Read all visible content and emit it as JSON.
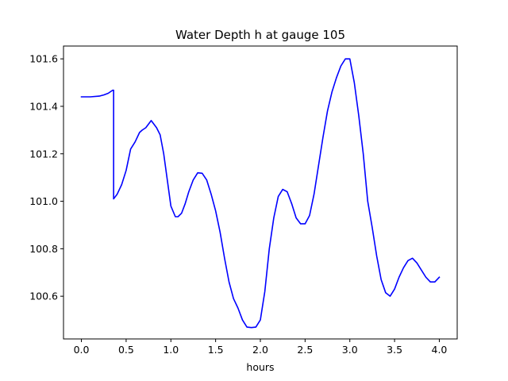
{
  "chart_data": {
    "type": "line",
    "title": "Water Depth h at gauge 105",
    "xlabel": "hours",
    "ylabel": "",
    "xlim": [
      -0.2,
      4.2
    ],
    "ylim": [
      100.42,
      101.654
    ],
    "xticks": [
      0.0,
      0.5,
      1.0,
      1.5,
      2.0,
      2.5,
      3.0,
      3.5,
      4.0
    ],
    "xtick_labels": [
      "0.0",
      "0.5",
      "1.0",
      "1.5",
      "2.0",
      "2.5",
      "3.0",
      "3.5",
      "4.0"
    ],
    "yticks": [
      100.6,
      100.8,
      101.0,
      101.2,
      101.4,
      101.6
    ],
    "ytick_labels": [
      "100.6",
      "100.8",
      "101.0",
      "101.2",
      "101.4",
      "101.6"
    ],
    "grid": false,
    "legend": "none",
    "series": [
      {
        "color": "#0000ff",
        "x": [
          0.0,
          0.1,
          0.2,
          0.25,
          0.3,
          0.35,
          0.36,
          0.36,
          0.4,
          0.45,
          0.5,
          0.55,
          0.6,
          0.65,
          0.68,
          0.72,
          0.76,
          0.78,
          0.8,
          0.84,
          0.88,
          0.92,
          0.96,
          1.0,
          1.05,
          1.08,
          1.12,
          1.16,
          1.2,
          1.25,
          1.3,
          1.35,
          1.4,
          1.45,
          1.5,
          1.55,
          1.6,
          1.65,
          1.7,
          1.75,
          1.8,
          1.85,
          1.9,
          1.95,
          2.0,
          2.05,
          2.1,
          2.15,
          2.2,
          2.25,
          2.3,
          2.35,
          2.4,
          2.45,
          2.5,
          2.55,
          2.6,
          2.65,
          2.7,
          2.75,
          2.8,
          2.85,
          2.9,
          2.95,
          3.0,
          3.05,
          3.1,
          3.15,
          3.2,
          3.25,
          3.3,
          3.35,
          3.4,
          3.45,
          3.5,
          3.55,
          3.6,
          3.65,
          3.7,
          3.75,
          3.8,
          3.85,
          3.9,
          3.95,
          4.0
        ],
        "y": [
          101.44,
          101.44,
          101.443,
          101.448,
          101.455,
          101.468,
          101.468,
          101.01,
          101.03,
          101.07,
          101.13,
          101.22,
          101.25,
          101.29,
          101.3,
          101.31,
          101.33,
          101.34,
          101.33,
          101.31,
          101.28,
          101.2,
          101.09,
          100.98,
          100.935,
          100.935,
          100.95,
          100.99,
          101.04,
          101.09,
          101.12,
          101.118,
          101.09,
          101.03,
          100.96,
          100.87,
          100.76,
          100.66,
          100.59,
          100.55,
          100.5,
          100.47,
          100.468,
          100.47,
          100.5,
          100.62,
          100.8,
          100.93,
          101.02,
          101.05,
          101.04,
          100.99,
          100.93,
          100.905,
          100.905,
          100.94,
          101.03,
          101.15,
          101.27,
          101.38,
          101.46,
          101.52,
          101.57,
          101.6,
          101.6,
          101.5,
          101.36,
          101.2,
          101.0,
          100.89,
          100.77,
          100.67,
          100.615,
          100.6,
          100.63,
          100.68,
          100.72,
          100.75,
          100.76,
          100.74,
          100.71,
          100.68,
          100.66,
          100.66,
          100.68
        ]
      }
    ]
  }
}
